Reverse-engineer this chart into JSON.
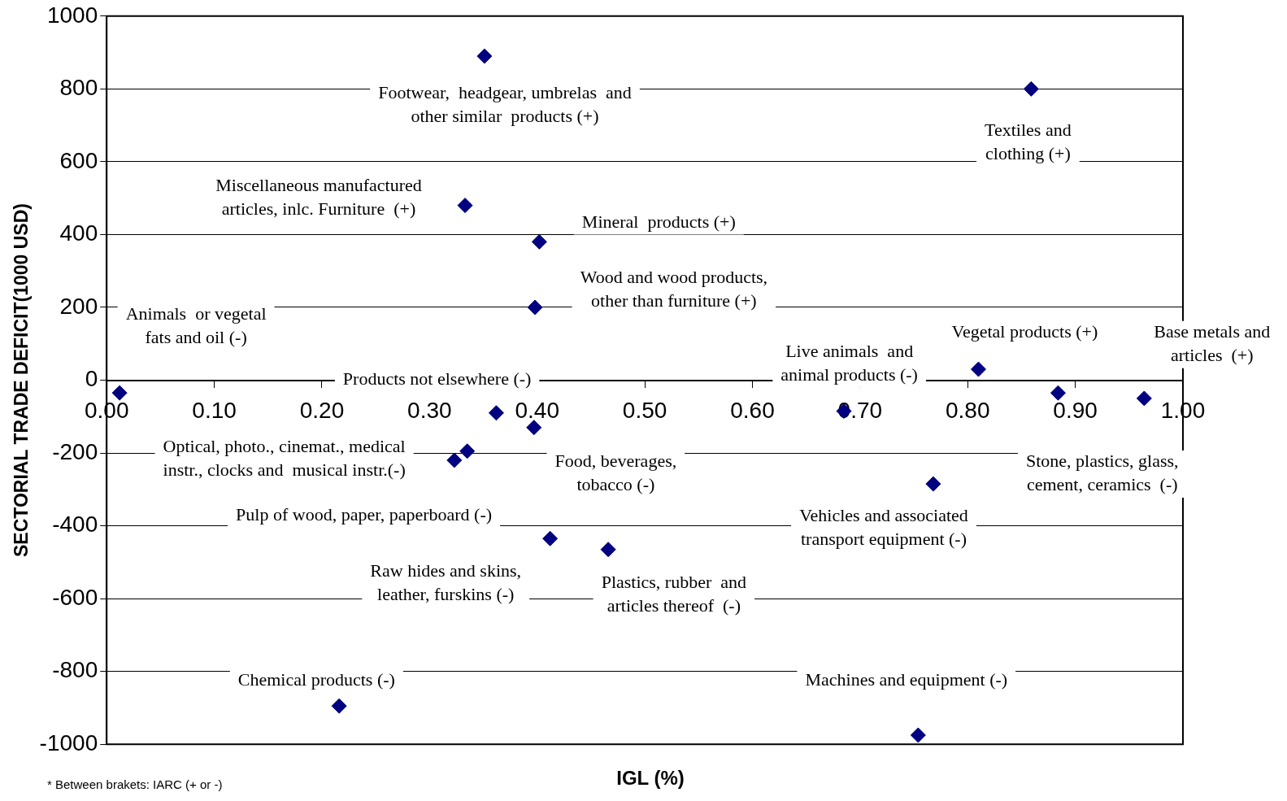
{
  "chart_data": {
    "type": "scatter",
    "xlabel": "IGL (%)",
    "ylabel": "SECTORIAL TRADE DEFICIT(1000 USD)",
    "xlim": [
      0,
      1
    ],
    "xticks": [
      {
        "value": 0,
        "label": "0.00"
      },
      {
        "value": 0.1,
        "label": "0.10"
      },
      {
        "value": 0.2,
        "label": "0.20"
      },
      {
        "value": 0.3,
        "label": "0.30"
      },
      {
        "value": 0.4,
        "label": "0.40"
      },
      {
        "value": 0.5,
        "label": "0.50"
      },
      {
        "value": 0.6,
        "label": "0.60"
      },
      {
        "value": 0.7,
        "label": "0.70"
      },
      {
        "value": 0.8,
        "label": "0.80"
      },
      {
        "value": 0.9,
        "label": "0.90"
      },
      {
        "value": 1,
        "label": "1.00"
      }
    ],
    "ylim": [
      -1000,
      1000
    ],
    "yticks": [
      -1000,
      -800,
      -600,
      -400,
      -200,
      0,
      200,
      400,
      600,
      800,
      1000
    ],
    "grid": "y",
    "legend": false,
    "marker": "diamond",
    "series": [
      {
        "color": "#000080",
        "x": [
          0.351,
          0.859,
          0.333,
          0.402,
          0.398,
          0.012,
          0.362,
          0.397,
          0.335,
          0.323,
          0.412,
          0.466,
          0.216,
          0.754,
          0.768,
          0.685,
          0.81,
          0.884,
          0.964
        ],
        "values": [
          890,
          800,
          480,
          380,
          200,
          -35,
          -90,
          -130,
          -195,
          -220,
          -435,
          -465,
          -895,
          -975,
          -285,
          -85,
          30,
          -35,
          -50
        ]
      }
    ],
    "annotations": [
      "Footwear,  headgear, umbrelas  and\nother similar  products (+)",
      "Textiles and\nclothing (+)",
      "Miscellaneous manufactured\narticles, inlc. Furniture  (+)",
      "Mineral  products (+)",
      "Wood and wood products,\nother than furniture (+)",
      "Animals  or vegetal\nfats and oil (-)",
      "Products not elsewhere (-)",
      "Live animals  and\nanimal products (-)",
      "Vegetal products (+)",
      "Base metals and\narticles  (+)",
      "Optical, photo., cinemat., medical\ninstr., clocks and  musical instr.(-)",
      "Food, beverages,\ntobacco (-)",
      "Stone, plastics, glass,\ncement, ceramics  (-)",
      "Pulp of wood, paper, paperboard (-)",
      "Vehicles and associated\ntransport equipment (-)",
      "Raw hides and skins,\nleather, furskins (-)",
      "Plastics, rubber  and\narticles thereof  (-)",
      "Chemical products (-)",
      "Machines and equipment (-)",
      "* Between brakets: IARC (+ or -)"
    ]
  }
}
